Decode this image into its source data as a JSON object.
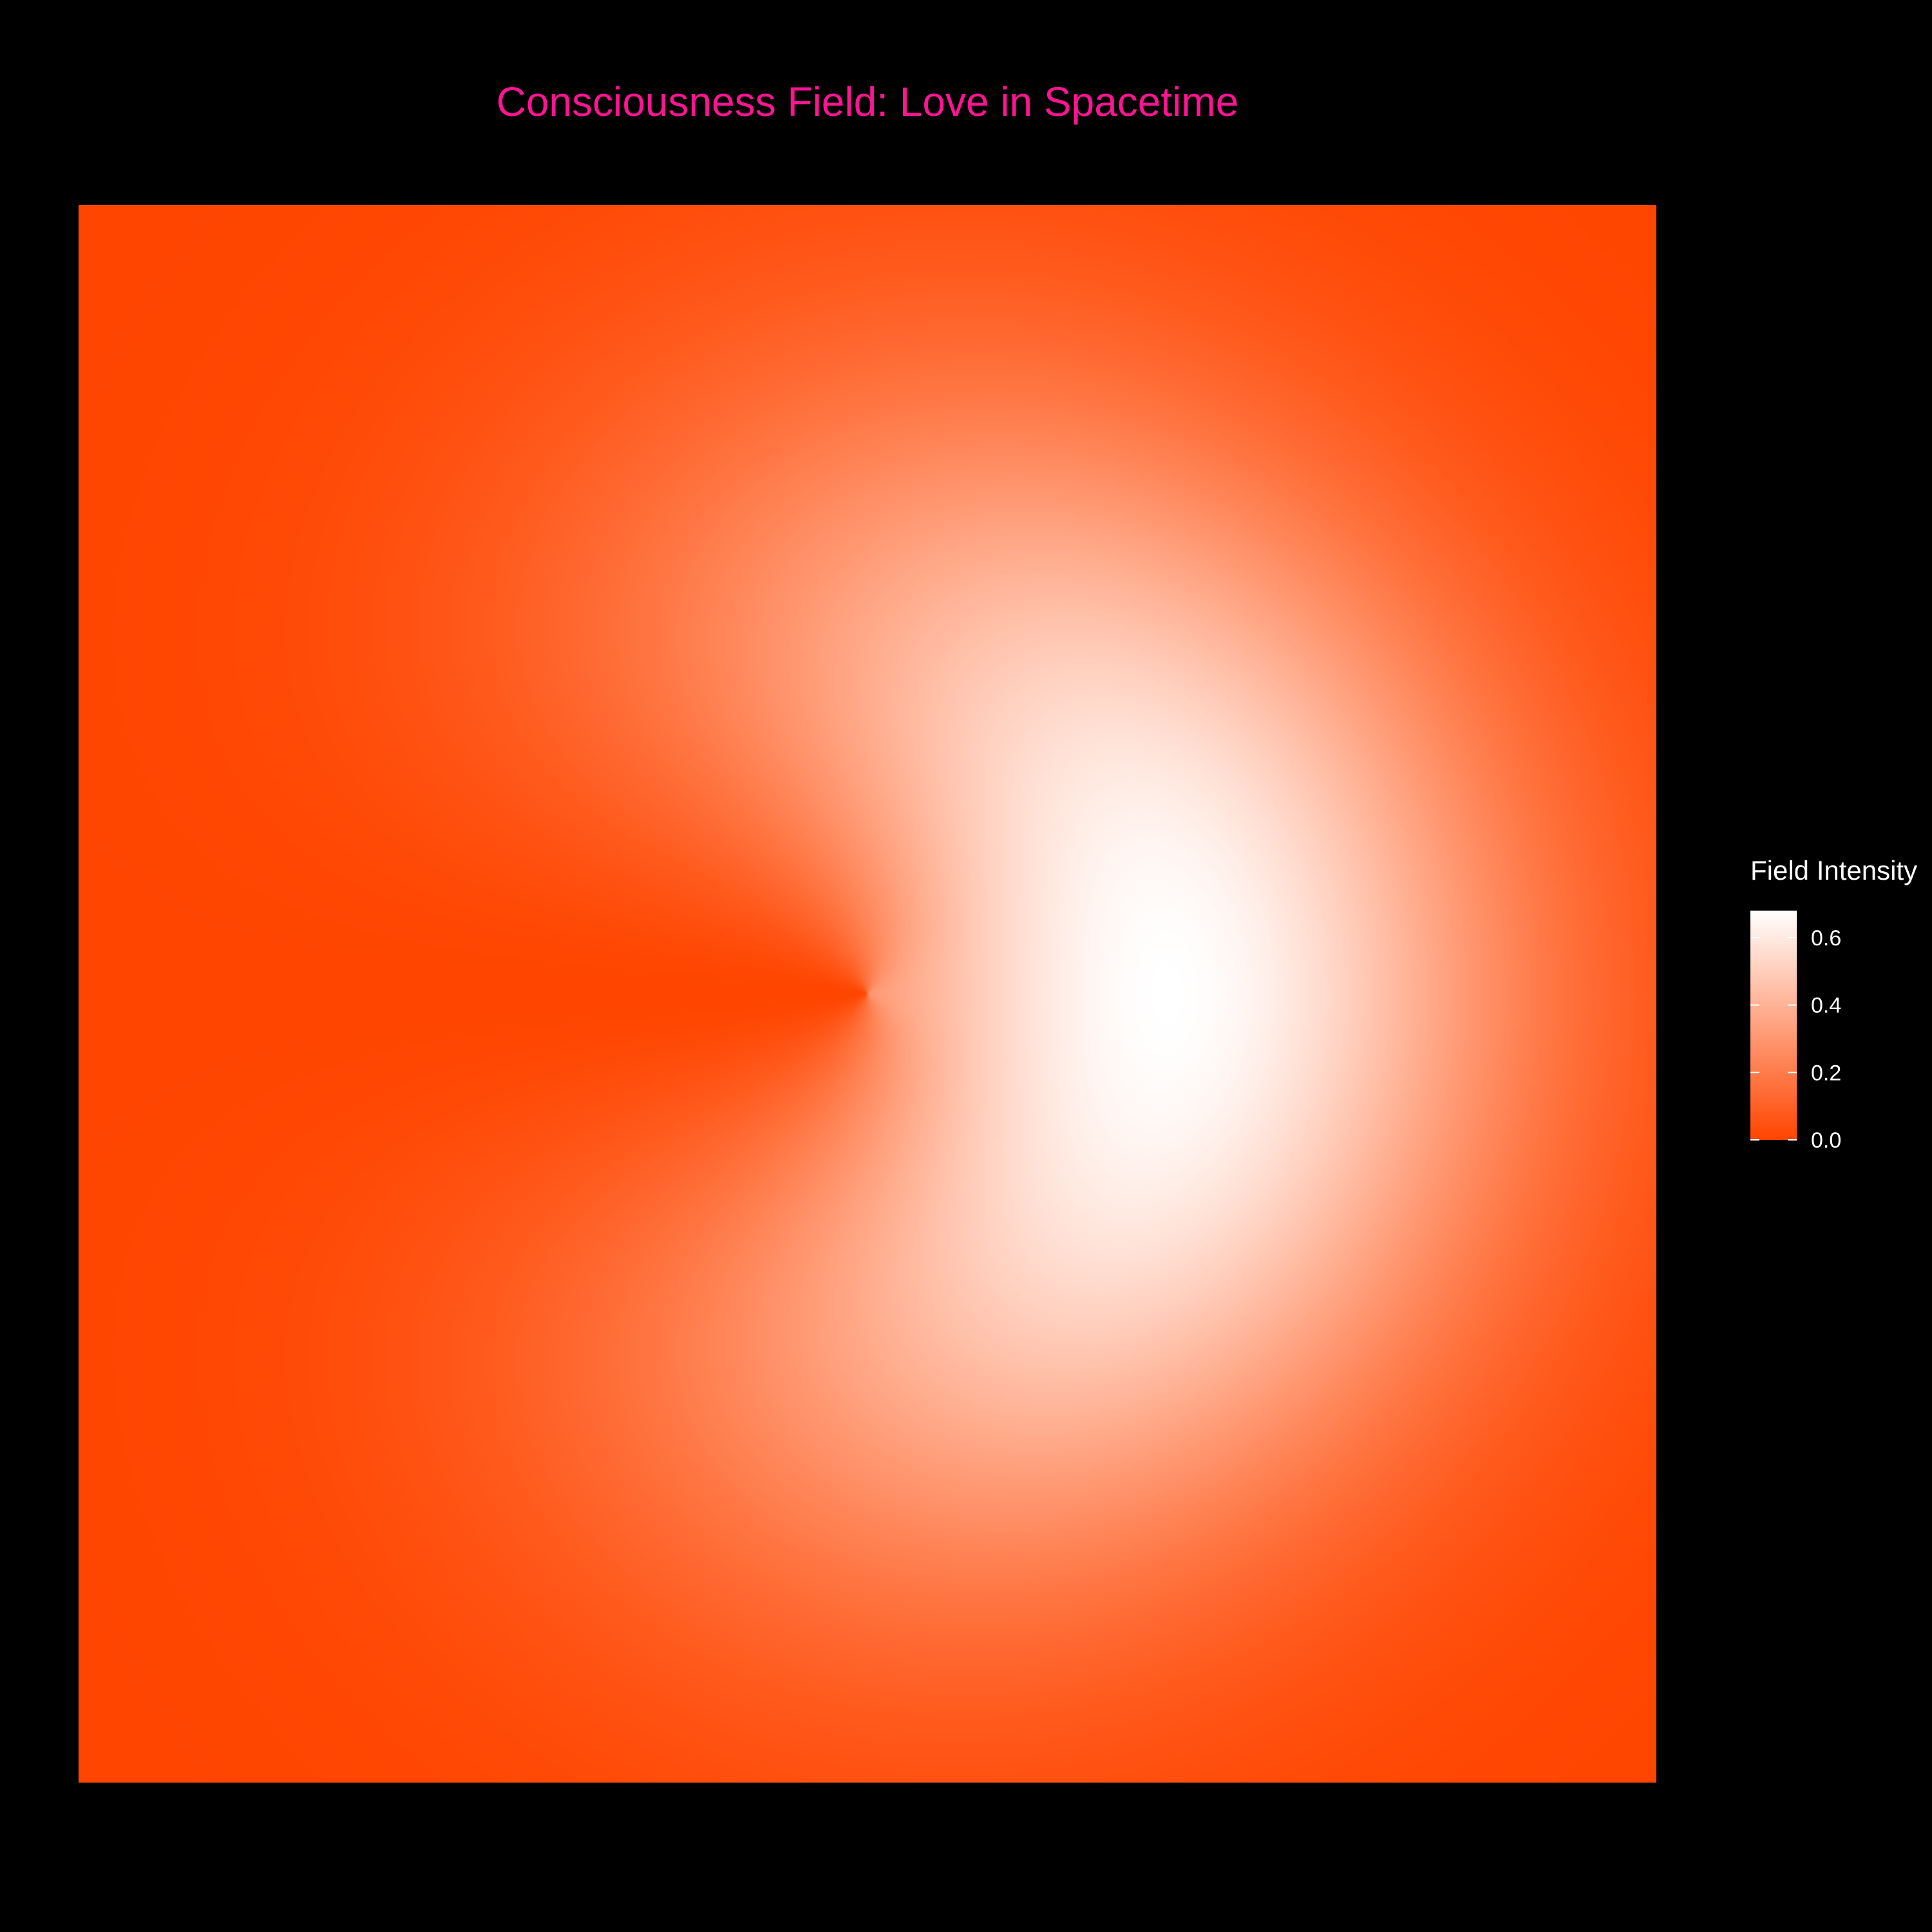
{
  "chart_data": {
    "type": "heatmap",
    "title": "Consciousness Field: Love in Spacetime",
    "xlabel": "",
    "ylabel": "",
    "axes_visible": false,
    "grid": false,
    "legend": {
      "title": "Field Intensity",
      "position": "right",
      "ticks": [
        0.0,
        0.2,
        0.4,
        0.6
      ],
      "tick_labels": [
        "0.0",
        "0.2",
        "0.4",
        "0.6"
      ],
      "min": 0.0,
      "max": 0.68
    },
    "colorscale": {
      "low": "#ff4500",
      "high": "#ffffff"
    },
    "field": {
      "description_of_shape": "crescent",
      "peak_value": 0.68,
      "peak_location_fraction": {
        "x": 0.67,
        "y": 0.5
      },
      "ring_center_fraction": {
        "x": 0.5,
        "y": 0.5
      },
      "ring_radius_fraction": 0.19,
      "ring_width_fraction": 0.15,
      "angular_cutoff": "minimum along the left horizontal axis"
    }
  },
  "colors": {
    "background": "#000000",
    "title": "#ff1493",
    "legend_text": "#ffffff"
  }
}
